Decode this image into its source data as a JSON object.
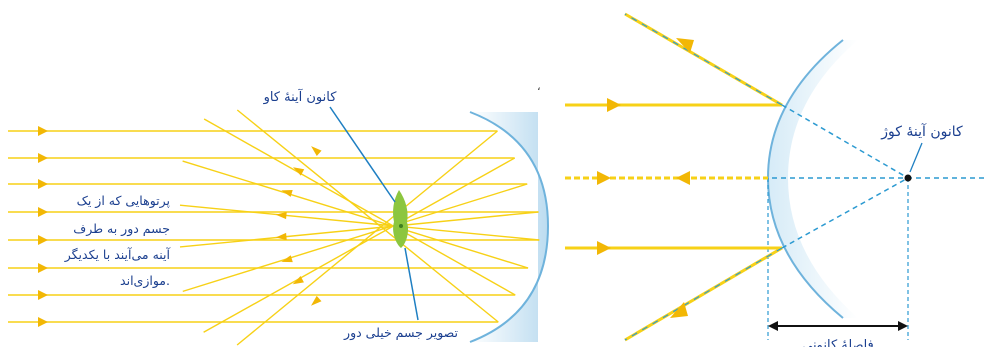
{
  "concave": {
    "focus_label": "کانون آینهٔ کاو",
    "description_lines": [
      "پرتوهایی که از یک",
      "جسم دور به طرف",
      "آینه می‌آیند با یکدیگر",
      "موازی‌اند."
    ],
    "image_label": "تصویر جسم خیلی دور"
  },
  "convex": {
    "focus_label": "کانون آینهٔ کوژ",
    "distance_label": "فاصلهٔ کانونی"
  },
  "stray_mark": "،",
  "colors": {
    "ray": "#f7d117",
    "arrow": "#f2b705",
    "mirror_fill": "#cfe6f5",
    "mirror_edge": "#6fb3dc",
    "dashed": "#2c9ad1",
    "pointer": "#1f7fc2",
    "label": "#1b3f8f",
    "object": "#8cc63f"
  }
}
